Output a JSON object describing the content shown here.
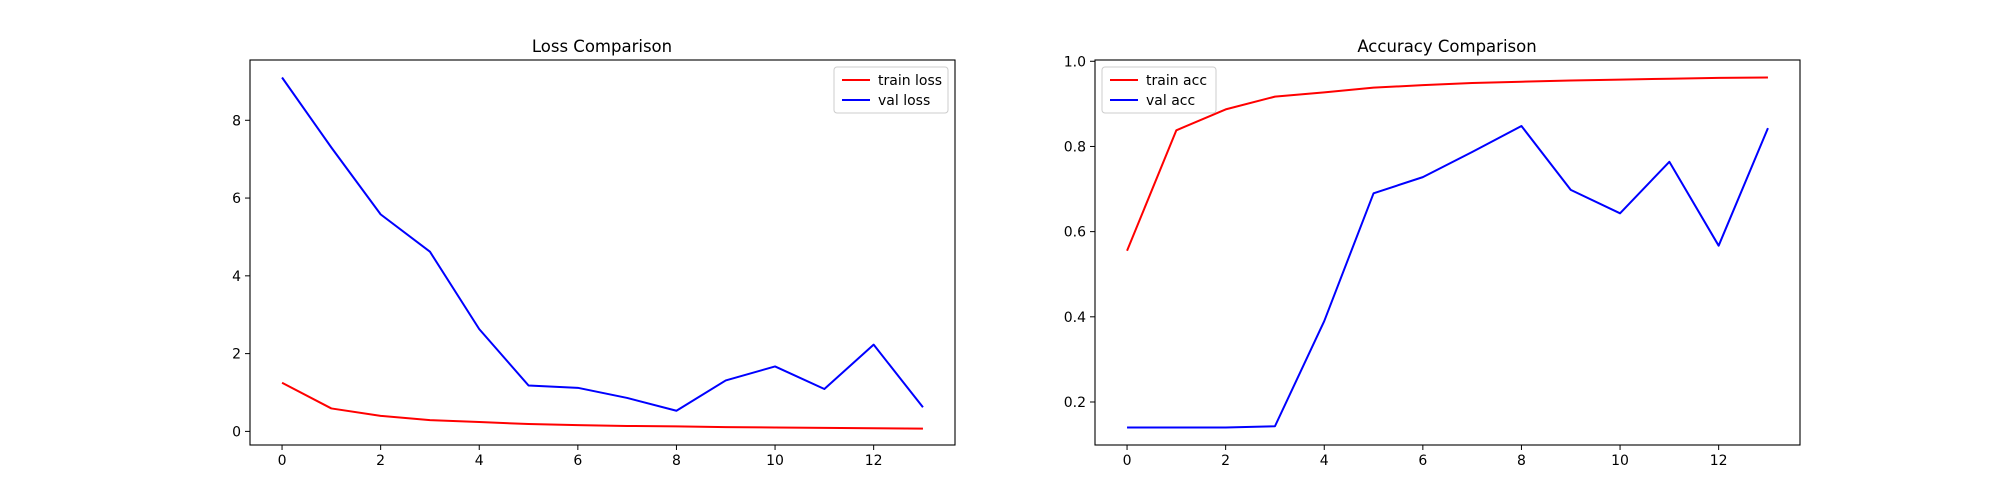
{
  "chart_data": [
    {
      "type": "line",
      "title": "Loss Comparison",
      "xlabel": "",
      "ylabel": "",
      "x": [
        0,
        1,
        2,
        3,
        4,
        5,
        6,
        7,
        8,
        9,
        10,
        11,
        12,
        13
      ],
      "series": [
        {
          "name": "train loss",
          "color": "#ff0000",
          "values": [
            1.25,
            0.59,
            0.4,
            0.29,
            0.24,
            0.19,
            0.16,
            0.14,
            0.13,
            0.11,
            0.1,
            0.09,
            0.08,
            0.07
          ]
        },
        {
          "name": "val loss",
          "color": "#0000ff",
          "values": [
            9.1,
            7.3,
            5.58,
            4.62,
            2.63,
            1.18,
            1.12,
            0.86,
            0.53,
            1.31,
            1.67,
            1.09,
            2.23,
            0.62
          ]
        }
      ],
      "xlim": [
        -0.65,
        13.65
      ],
      "ylim": [
        -0.35,
        9.55
      ],
      "xticks": [
        0,
        2,
        4,
        6,
        8,
        10,
        12
      ],
      "yticks": [
        0,
        2,
        4,
        6,
        8
      ],
      "grid": false,
      "legend_position": "top-right"
    },
    {
      "type": "line",
      "title": "Accuracy Comparison",
      "xlabel": "",
      "ylabel": "",
      "x": [
        0,
        1,
        2,
        3,
        4,
        5,
        6,
        7,
        8,
        9,
        10,
        11,
        12,
        13
      ],
      "series": [
        {
          "name": "train acc",
          "color": "#ff0000",
          "values": [
            0.555,
            0.838,
            0.887,
            0.917,
            0.927,
            0.938,
            0.944,
            0.949,
            0.952,
            0.955,
            0.957,
            0.959,
            0.961,
            0.962
          ]
        },
        {
          "name": "val acc",
          "color": "#0000ff",
          "values": [
            0.14,
            0.14,
            0.14,
            0.143,
            0.39,
            0.69,
            0.728,
            0.787,
            0.848,
            0.698,
            0.643,
            0.764,
            0.567,
            0.843
          ]
        }
      ],
      "xlim": [
        -0.65,
        13.65
      ],
      "ylim": [
        0.099,
        1.003
      ],
      "xticks": [
        0,
        2,
        4,
        6,
        8,
        10,
        12
      ],
      "yticks": [
        0.2,
        0.4,
        0.6,
        0.8,
        1.0
      ],
      "ytick_labels": [
        "0.2",
        "0.4",
        "0.6",
        "0.8",
        "1.0"
      ],
      "grid": false,
      "legend_position": "top-left"
    }
  ]
}
